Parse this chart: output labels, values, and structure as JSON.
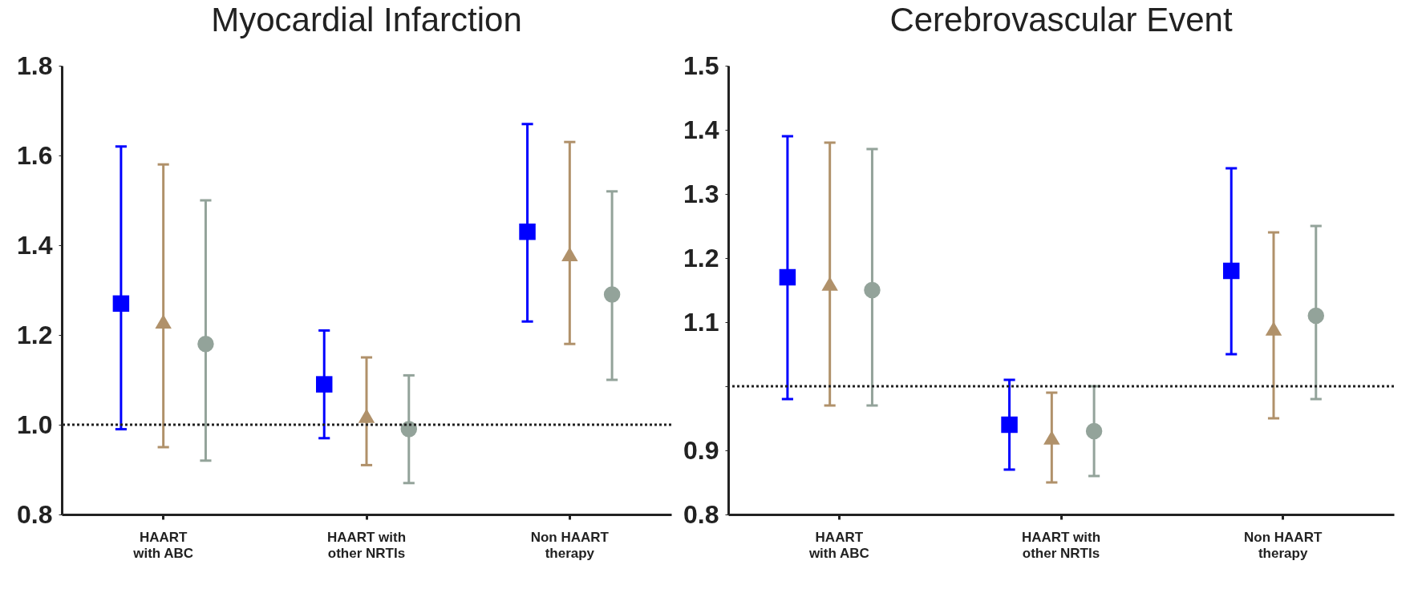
{
  "chart_data": [
    {
      "type": "scatter",
      "title": "Myocardial Infarction",
      "categories": [
        "HAART\nwith ABC",
        "HAART with\nother NRTIs",
        "Non HAART\ntherapy"
      ],
      "ylim": [
        0.8,
        1.8
      ],
      "yticks": [
        0.8,
        {
          "value": 1.0,
          "label": "1.0"
        },
        1.2,
        1.4,
        1.6,
        1.8
      ],
      "grid": false,
      "legend": false,
      "series": [
        {
          "color": "#0000ff",
          "marker": "square",
          "values": [
            1.27,
            1.09,
            1.43
          ],
          "errors": [
            [
              0.99,
              1.62
            ],
            [
              0.97,
              1.21
            ],
            [
              1.23,
              1.67
            ]
          ]
        },
        {
          "color": "#b0916a",
          "marker": "triangle",
          "values": [
            1.23,
            1.02,
            1.38
          ],
          "errors": [
            [
              0.95,
              1.58
            ],
            [
              0.91,
              1.15
            ],
            [
              1.18,
              1.63
            ]
          ]
        },
        {
          "color": "#93a39a",
          "marker": "circle",
          "values": [
            1.18,
            0.99,
            1.29
          ],
          "errors": [
            [
              0.92,
              1.5
            ],
            [
              0.87,
              1.11
            ],
            [
              1.1,
              1.52
            ]
          ]
        }
      ],
      "ref_lines": [
        {
          "axis": "y",
          "value": 1.0,
          "line_style": "dotted",
          "color": "#222222"
        }
      ]
    },
    {
      "type": "scatter",
      "title": "Cerebrovascular Event",
      "categories": [
        "HAART\nwith ABC",
        "HAART with\nother NRTIs",
        "Non HAART\ntherapy"
      ],
      "ylim": [
        0.8,
        1.5
      ],
      "yticks": [
        0.8,
        0.9,
        {
          "value": 1.0,
          "label": null
        },
        1.1,
        1.2,
        1.3,
        1.4,
        1.5
      ],
      "grid": false,
      "legend": false,
      "series": [
        {
          "color": "#0000ff",
          "marker": "square",
          "values": [
            1.17,
            0.94,
            1.18
          ],
          "errors": [
            [
              0.98,
              1.39
            ],
            [
              0.87,
              1.01
            ],
            [
              1.05,
              1.34
            ]
          ]
        },
        {
          "color": "#b0916a",
          "marker": "triangle",
          "values": [
            1.16,
            0.92,
            1.09
          ],
          "errors": [
            [
              0.97,
              1.38
            ],
            [
              0.85,
              0.99
            ],
            [
              0.95,
              1.24
            ]
          ]
        },
        {
          "color": "#93a39a",
          "marker": "circle",
          "values": [
            1.15,
            0.93,
            1.11
          ],
          "errors": [
            [
              0.97,
              1.37
            ],
            [
              0.86,
              1.0
            ],
            [
              0.98,
              1.25
            ]
          ]
        }
      ],
      "ref_lines": [
        {
          "axis": "y",
          "value": 1.0,
          "line_style": "dotted",
          "color": "#222222"
        }
      ]
    }
  ]
}
